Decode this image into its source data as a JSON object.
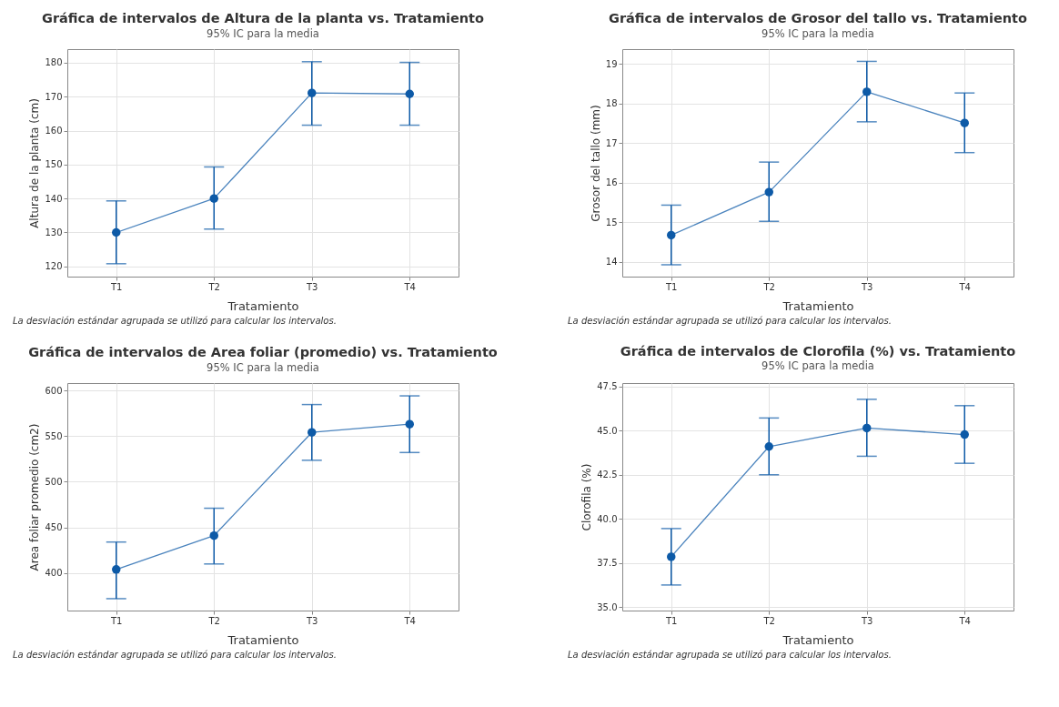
{
  "chart_data": [
    {
      "type": "line",
      "title": "Gráfica de intervalos de Altura de la planta vs. Tratamiento",
      "subtitle": "95% IC para la media",
      "xlabel": "Tratamiento",
      "ylabel": "Altura de la planta (cm)",
      "categories": [
        "T1",
        "T2",
        "T3",
        "T4"
      ],
      "series": [
        {
          "color": "#0d5aa7",
          "values": [
            130,
            140,
            171.1,
            170.8
          ],
          "errors": [
            [
              120.8,
              139.3
            ],
            [
              131,
              149.3
            ],
            [
              161.6,
              180.3
            ],
            [
              161.6,
              180.1
            ]
          ]
        }
      ],
      "ylim": [
        117,
        184
      ],
      "yticks": [
        120,
        130,
        140,
        150,
        160,
        170,
        180
      ],
      "grid": true,
      "marker": "circle",
      "line_style": "solid",
      "annotations": [
        "La desviación estándar agrupada se utilizó para calcular los intervalos."
      ]
    },
    {
      "type": "line",
      "title": "Gráfica de intervalos de Grosor del tallo vs. Tratamiento",
      "subtitle": "95% IC para la media",
      "xlabel": "Tratamiento",
      "ylabel": "Grosor del tallo (mm)",
      "categories": [
        "T1",
        "T2",
        "T3",
        "T4"
      ],
      "series": [
        {
          "color": "#0d5aa7",
          "values": [
            14.67,
            15.76,
            18.3,
            17.51
          ],
          "errors": [
            [
              13.92,
              15.43
            ],
            [
              15.02,
              16.52
            ],
            [
              17.54,
              19.07
            ],
            [
              16.76,
              18.27
            ]
          ]
        }
      ],
      "ylim": [
        13.62,
        19.38
      ],
      "yticks": [
        14,
        15,
        16,
        17,
        18,
        19
      ],
      "grid": true,
      "marker": "circle",
      "line_style": "solid",
      "annotations": [
        "La desviación estándar agrupada se utilizó para calcular los intervalos."
      ]
    },
    {
      "type": "line",
      "title": "Gráfica de intervalos de Area foliar (promedio) vs. Tratamiento",
      "subtitle": "95% IC para la media",
      "xlabel": "Tratamiento",
      "ylabel": "Area foliar promedio (cm2)",
      "categories": [
        "T1",
        "T2",
        "T3",
        "T4"
      ],
      "series": [
        {
          "color": "#0d5aa7",
          "values": [
            404,
            441,
            554,
            563
          ],
          "errors": [
            [
              372,
              434
            ],
            [
              410,
              471
            ],
            [
              523.5,
              584.5
            ],
            [
              532,
              594
            ]
          ]
        }
      ],
      "ylim": [
        359,
        608
      ],
      "yticks": [
        400,
        450,
        500,
        550,
        600
      ],
      "grid": true,
      "marker": "circle",
      "line_style": "solid",
      "annotations": [
        "La desviación estándar agrupada se utilizó para calcular los intervalos."
      ]
    },
    {
      "type": "line",
      "title": "Gráfica de intervalos de Clorofila (%) vs. Tratamiento",
      "subtitle": "95% IC para la media",
      "xlabel": "Tratamiento",
      "ylabel": "Clorofila (%)",
      "categories": [
        "T1",
        "T2",
        "T3",
        "T4"
      ],
      "series": [
        {
          "color": "#0d5aa7",
          "values": [
            37.85,
            44.1,
            45.15,
            44.78
          ],
          "errors": [
            [
              36.25,
              39.45
            ],
            [
              42.5,
              45.72
            ],
            [
              43.55,
              46.78
            ],
            [
              43.15,
              46.42
            ]
          ]
        }
      ],
      "ylim": [
        34.8,
        47.7
      ],
      "yticks": [
        {
          "value": 35,
          "label": "35.0"
        },
        {
          "value": 37.5,
          "label": "37.5"
        },
        {
          "value": 40,
          "label": "40.0"
        },
        {
          "value": 42.5,
          "label": "42.5"
        },
        {
          "value": 45,
          "label": "45.0"
        },
        {
          "value": 47.5,
          "label": "47.5"
        }
      ],
      "grid": true,
      "marker": "circle",
      "line_style": "solid",
      "annotations": [
        "La desviación estándar agrupada se utilizó para calcular los intervalos."
      ]
    }
  ]
}
